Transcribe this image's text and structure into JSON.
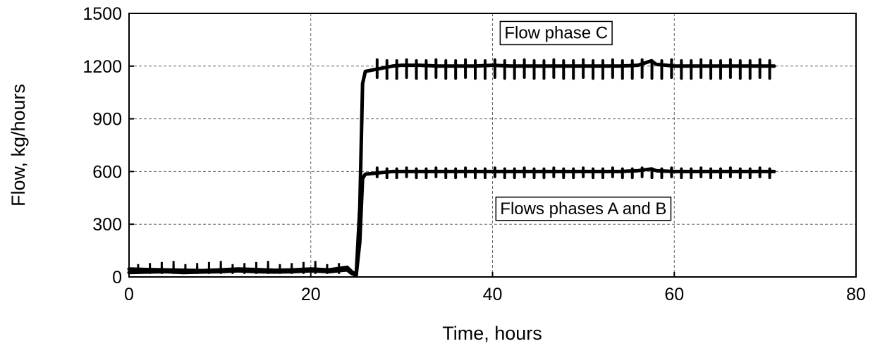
{
  "chart_data": {
    "type": "line",
    "title": "",
    "xlabel": "Time, hours",
    "ylabel": "Flow, kg/hours",
    "xlim": [
      0,
      80
    ],
    "ylim": [
      0,
      1500
    ],
    "xticks": [
      0,
      20,
      40,
      60,
      80
    ],
    "yticks": [
      0,
      300,
      600,
      900,
      1200,
      1500
    ],
    "grid": true,
    "annotations": [
      {
        "text": "Flow phase C",
        "x": 47,
        "y": 1390
      },
      {
        "text": "Flows phases A and B",
        "x": 50,
        "y": 390
      }
    ],
    "series": [
      {
        "x": [
          0,
          2,
          4,
          6,
          8,
          10,
          12,
          14,
          16,
          18,
          20,
          22,
          24,
          24.5,
          25,
          25.4,
          25.7,
          26,
          27,
          28,
          29,
          30,
          32,
          34,
          36,
          38,
          40,
          42,
          44,
          46,
          48,
          50,
          52,
          54,
          56,
          57.5,
          58,
          60,
          62,
          64,
          66,
          68,
          70,
          71
        ],
        "y": [
          45,
          42,
          40,
          38,
          36,
          40,
          45,
          42,
          38,
          40,
          45,
          40,
          55,
          30,
          15,
          400,
          1100,
          1170,
          1180,
          1190,
          1200,
          1205,
          1205,
          1200,
          1200,
          1200,
          1205,
          1200,
          1200,
          1200,
          1200,
          1200,
          1200,
          1200,
          1205,
          1230,
          1210,
          1200,
          1200,
          1200,
          1200,
          1200,
          1200,
          1200
        ]
      },
      {
        "x": [
          0,
          2,
          4,
          6,
          8,
          10,
          12,
          14,
          16,
          18,
          20,
          22,
          24,
          24.5,
          25,
          25.4,
          25.7,
          26,
          27,
          28,
          29,
          30,
          32,
          34,
          36,
          38,
          40,
          42,
          44,
          46,
          48,
          50,
          52,
          54,
          56,
          57.5,
          58,
          60,
          62,
          64,
          66,
          68,
          70,
          71
        ],
        "y": [
          25,
          28,
          30,
          25,
          28,
          30,
          35,
          30,
          28,
          30,
          35,
          30,
          40,
          20,
          10,
          200,
          560,
          585,
          590,
          595,
          600,
          600,
          600,
          600,
          600,
          600,
          600,
          600,
          600,
          600,
          600,
          600,
          600,
          600,
          605,
          615,
          605,
          600,
          600,
          600,
          600,
          600,
          600,
          600
        ]
      }
    ]
  }
}
